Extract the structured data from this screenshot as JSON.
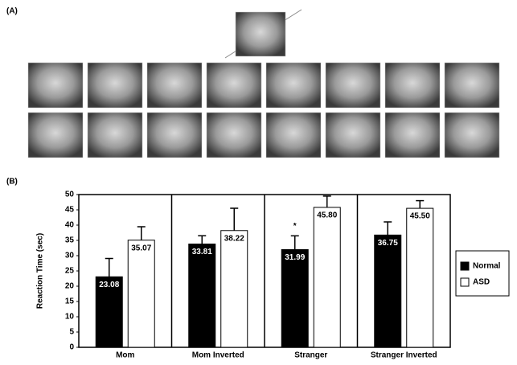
{
  "panels": {
    "a": "(A)",
    "b": "(B)"
  },
  "chart_data": {
    "type": "bar",
    "y_label": "Reaction Time (sec)",
    "categories": [
      "Mom",
      "Mom Inverted",
      "Stranger",
      "Stranger Inverted"
    ],
    "series": [
      {
        "name": "Normal",
        "color": "#000000",
        "values": [
          23.08,
          33.81,
          31.99,
          36.75
        ],
        "value_labels": [
          "23.08",
          "33.81",
          "31.99",
          "36.75"
        ],
        "errors": [
          6,
          2.7,
          4.5,
          4.3
        ]
      },
      {
        "name": "ASD",
        "color": "#ffffff",
        "values": [
          35.07,
          38.22,
          45.8,
          45.5
        ],
        "value_labels": [
          "35.07",
          "38.22",
          "45.80",
          "45.50"
        ],
        "errors": [
          4.4,
          7.3,
          3.7,
          2.5
        ]
      }
    ],
    "annotation": "*",
    "ylim": [
      0,
      50
    ],
    "yticks": [
      0,
      5,
      10,
      15,
      20,
      25,
      30,
      35,
      40,
      45,
      50
    ],
    "legend": "right"
  }
}
